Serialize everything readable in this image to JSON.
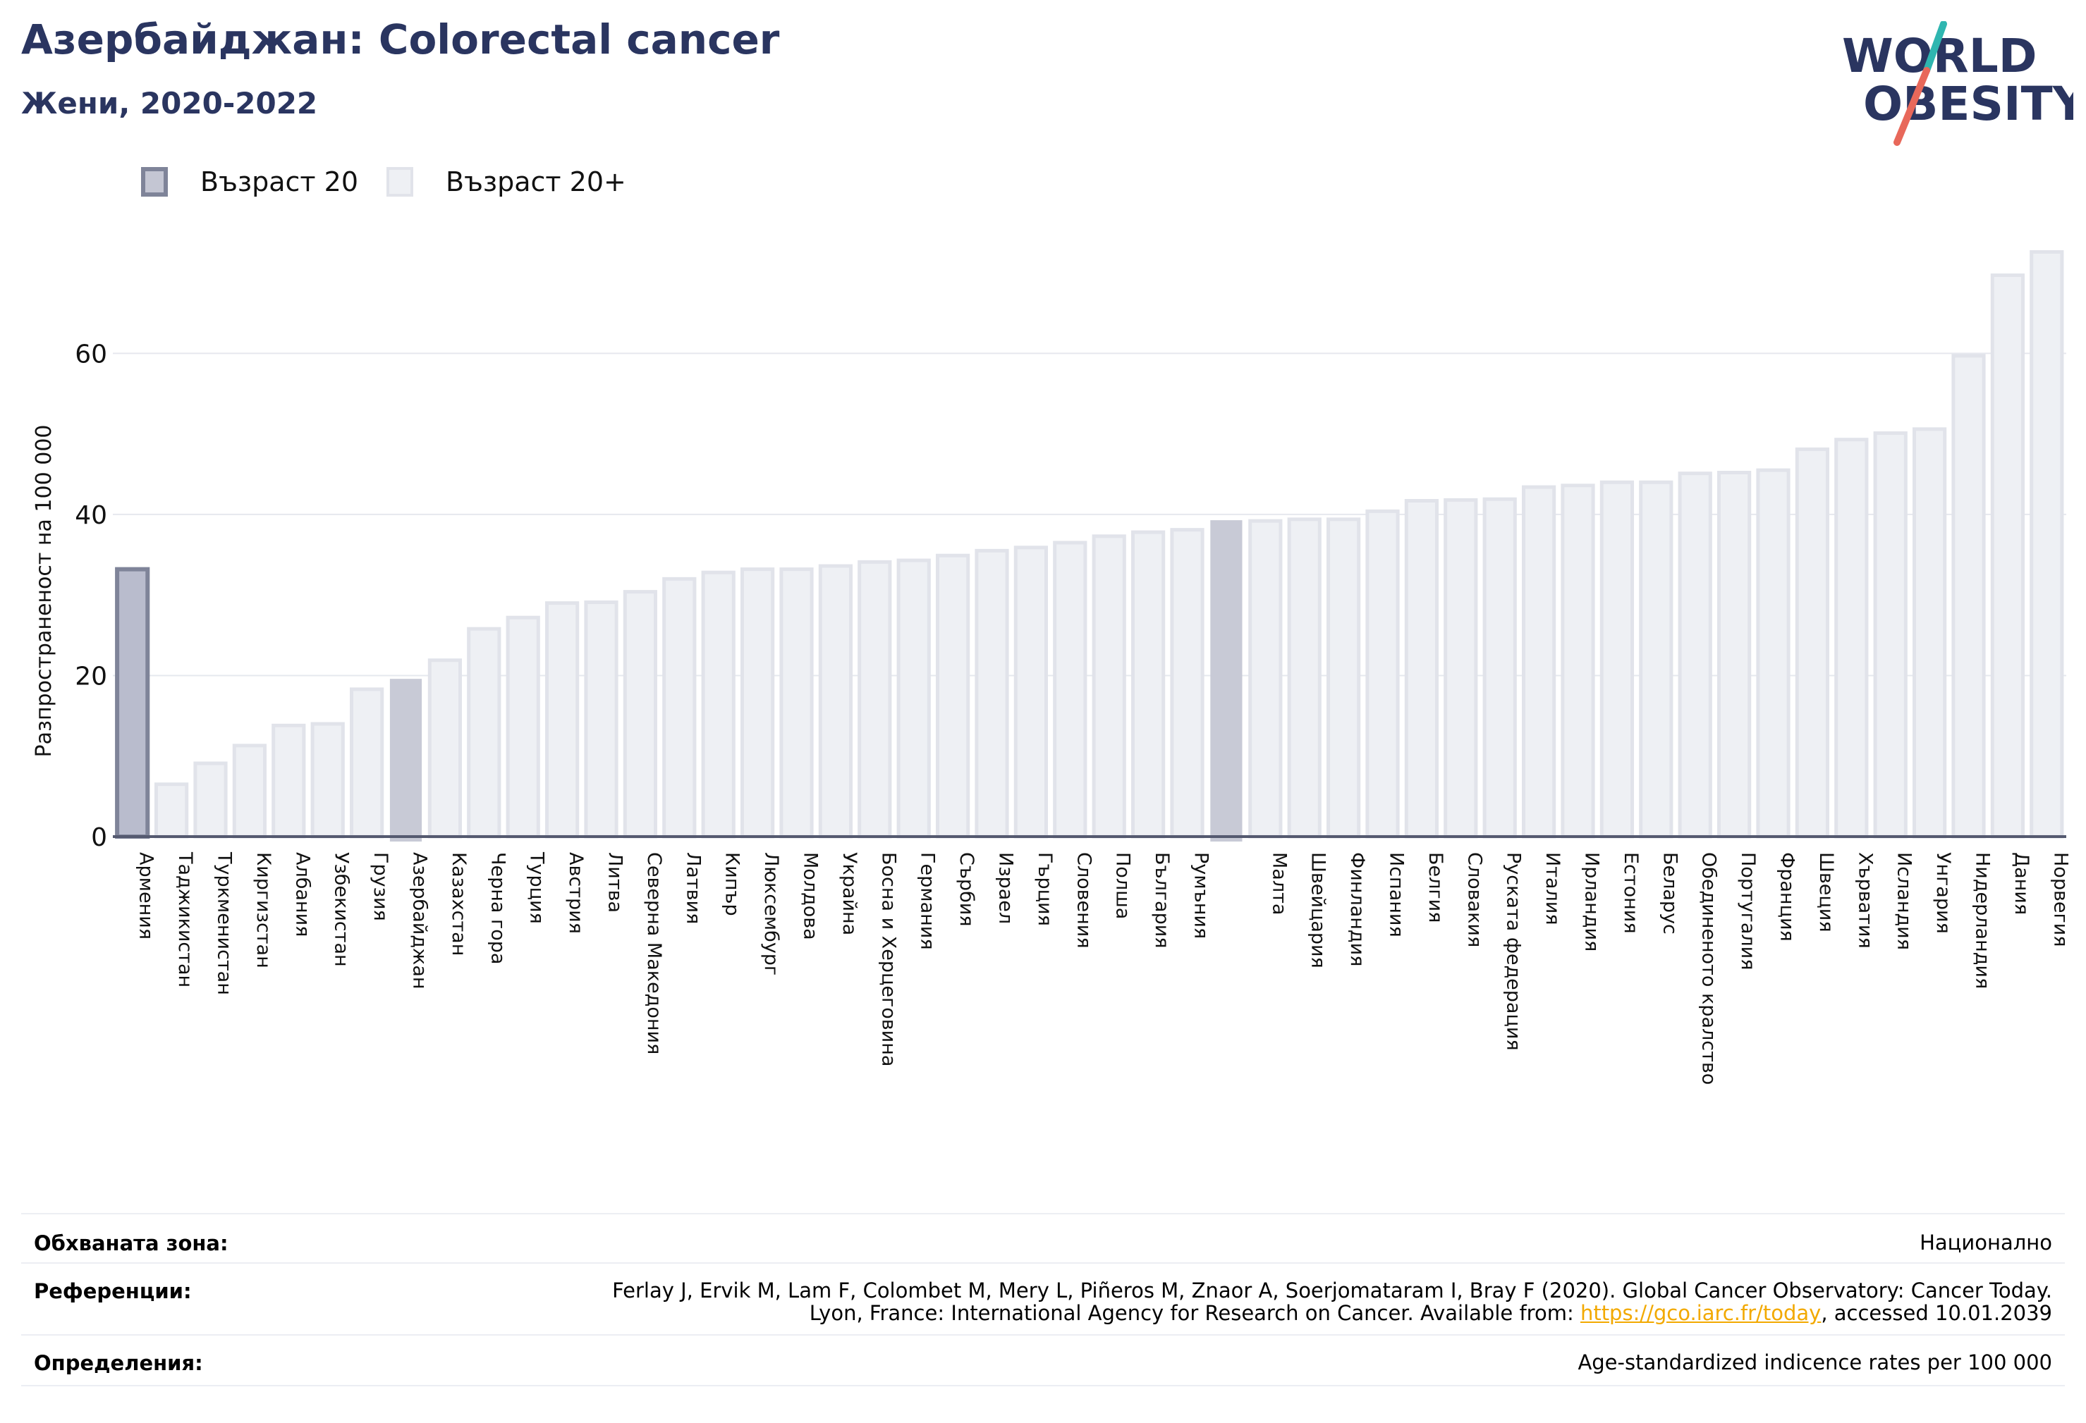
{
  "header": {
    "title": "Азербайджан: Colorectal cancer",
    "subtitle": "Жени, 2020-2022"
  },
  "logo": {
    "line1": "WORLD",
    "line2": "OBESITY"
  },
  "legend": [
    {
      "label": "Възраст 20",
      "color": "#c4c6d3",
      "border": "#7f8499"
    },
    {
      "label": "Възраст 20+",
      "color": "#eef0f4",
      "border": "#e1e3ea"
    }
  ],
  "colors": {
    "bar_fill": "#eef0f4",
    "bar_border": "#e1e3ea",
    "highlight_fill": "#c8cad6",
    "age20_fill": "#b9bccd",
    "age20_border": "#7f8499",
    "axis": "#555a70",
    "grid": "#e6e8ee",
    "title": "#2a3560"
  },
  "chart_data": {
    "type": "bar",
    "ylabel": "Разпространеност  на 100 000",
    "ylim": [
      0,
      75
    ],
    "yticks": [
      0,
      20,
      40,
      60
    ],
    "grid": true,
    "categories": [
      "Армения",
      "Таджикистан",
      "Туркменистан",
      "Киргизстан",
      "Албания",
      "Узбекистан",
      "Грузия",
      "Азербайджан",
      "Казахстан",
      "Черна гора",
      "Турция",
      "Австрия",
      "Литва",
      "Северна Македония",
      "Латвия",
      "Кипър",
      "Люксембург",
      "Молдова",
      "Украйна",
      "Босна и Херцеговина",
      "Германия",
      "Сърбия",
      "Израел",
      "Гърция",
      "Словения",
      "Полша",
      "България",
      "Румъния",
      "",
      "Малта",
      "Швейцария",
      "Финландия",
      "Испания",
      "Белгия",
      "Словакия",
      "Руската федерация",
      "Италия",
      "Ирландия",
      "Естония",
      "Беларус",
      "Обединеното кралство",
      "Португалия",
      "Франция",
      "Швеция",
      "Хърватия",
      "Исландия",
      "Унгария",
      "Нидерландия",
      "Дания",
      "Норвегия"
    ],
    "series": [
      {
        "name": "Възраст 20+",
        "values": [
          33.2,
          6.5,
          9.1,
          11.3,
          13.8,
          14.0,
          18.3,
          19.5,
          21.9,
          25.8,
          27.2,
          29.0,
          29.1,
          30.4,
          32.0,
          32.8,
          33.2,
          33.2,
          33.6,
          34.1,
          34.3,
          34.9,
          35.5,
          35.9,
          36.5,
          37.3,
          37.8,
          38.1,
          39.2,
          39.2,
          39.4,
          39.4,
          40.4,
          41.7,
          41.8,
          41.9,
          43.4,
          43.6,
          44.0,
          44.0,
          45.1,
          45.2,
          45.5,
          48.1,
          49.3,
          50.1,
          50.6,
          59.7,
          69.7,
          72.6
        ]
      }
    ],
    "highlight_indices": [
      7,
      28
    ],
    "age20_indices": [
      0
    ]
  },
  "footer": {
    "coverage_label": "Обхваната зона:",
    "coverage_value": "Национално",
    "references_label": "Референции:",
    "references_line1": "Ferlay J, Ervik M, Lam F, Colombet M, Mery L, Piñeros M, Znaor A, Soerjomataram I, Bray F (2020). Global Cancer Observatory: Cancer Today.",
    "references_line2_pre": "Lyon, France: International Agency for Research on Cancer. Available from: ",
    "references_link": "https://gco.iarc.fr/today",
    "references_line2_post": ", accessed 10.01.2039",
    "definitions_label": "Определения:",
    "definitions_value": "Age-standardized indicence rates per 100 000"
  }
}
